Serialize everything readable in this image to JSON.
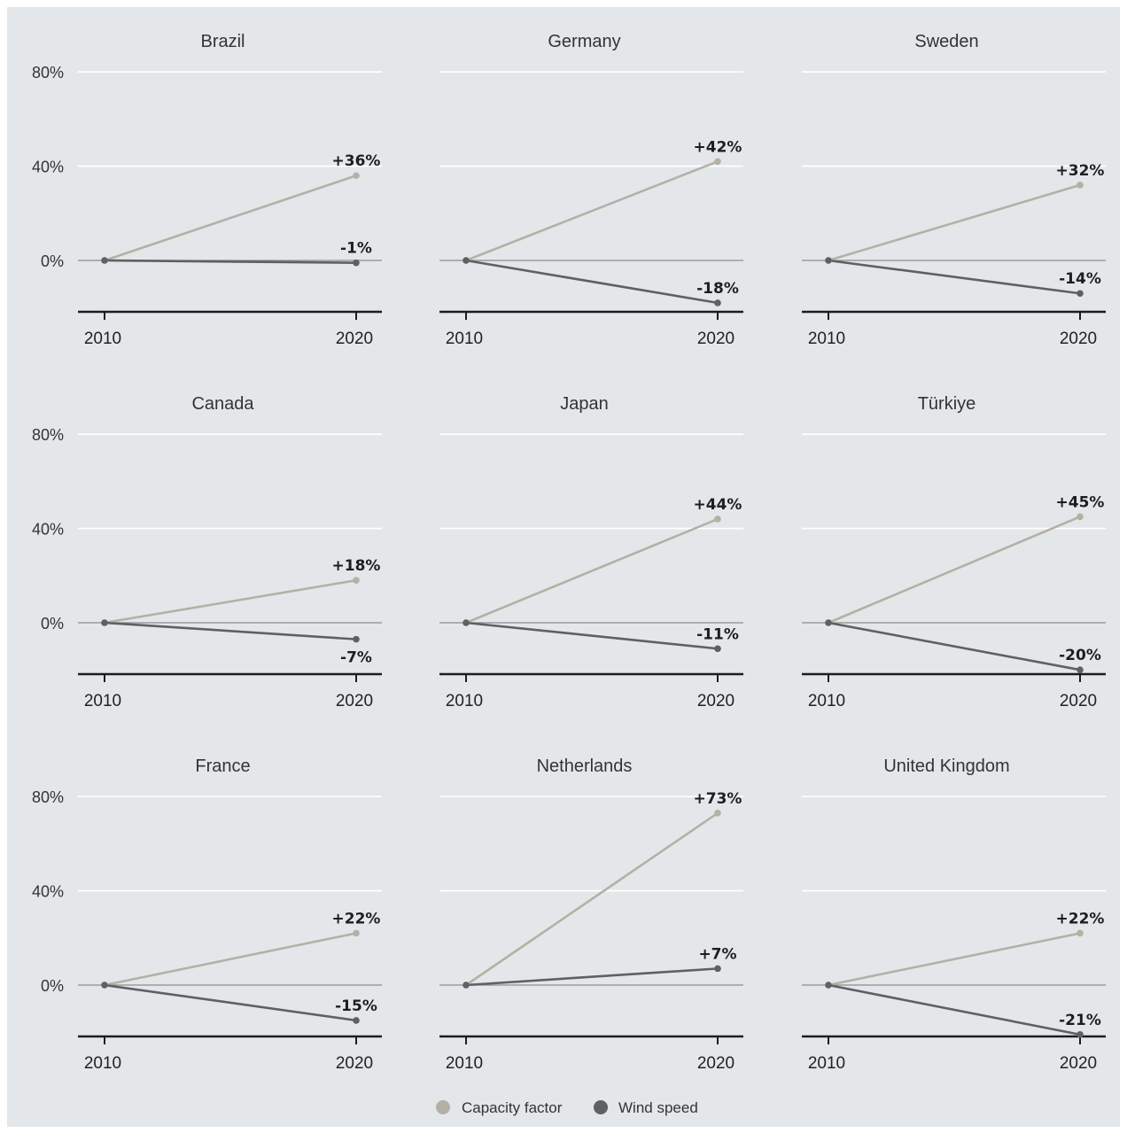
{
  "chart_data": {
    "type": "line",
    "x": [
      "2010",
      "2020"
    ],
    "y_ticks": [
      "80%",
      "40%",
      "0%"
    ],
    "ylim": [
      -22,
      80
    ],
    "grid": true,
    "legend_position": "bottom-center",
    "colors": {
      "capacity_factor": "#b3b1a5",
      "wind_speed": "#5e6064",
      "background": "#e3e7ea"
    },
    "legend": [
      {
        "key": "capacity_factor",
        "label": "Capacity factor"
      },
      {
        "key": "wind_speed",
        "label": "Wind speed"
      }
    ],
    "panels": [
      {
        "title": "Brazil",
        "capacity_factor": [
          0,
          36
        ],
        "wind_speed": [
          0,
          -1
        ],
        "capacity_label": "+36%",
        "wind_label": "-1%",
        "wind_label_pos": "above"
      },
      {
        "title": "Germany",
        "capacity_factor": [
          0,
          42
        ],
        "wind_speed": [
          0,
          -18
        ],
        "capacity_label": "+42%",
        "wind_label": "-18%",
        "wind_label_pos": "above"
      },
      {
        "title": "Sweden",
        "capacity_factor": [
          0,
          32
        ],
        "wind_speed": [
          0,
          -14
        ],
        "capacity_label": "+32%",
        "wind_label": "-14%",
        "wind_label_pos": "above"
      },
      {
        "title": "Canada",
        "capacity_factor": [
          0,
          18
        ],
        "wind_speed": [
          0,
          -7
        ],
        "capacity_label": "+18%",
        "wind_label": "-7%",
        "wind_label_pos": "below"
      },
      {
        "title": "Japan",
        "capacity_factor": [
          0,
          44
        ],
        "wind_speed": [
          0,
          -11
        ],
        "capacity_label": "+44%",
        "wind_label": "-11%",
        "wind_label_pos": "above"
      },
      {
        "title": "Türkiye",
        "capacity_factor": [
          0,
          45
        ],
        "wind_speed": [
          0,
          -20
        ],
        "capacity_label": "+45%",
        "wind_label": "-20%",
        "wind_label_pos": "above"
      },
      {
        "title": "France",
        "capacity_factor": [
          0,
          22
        ],
        "wind_speed": [
          0,
          -15
        ],
        "capacity_label": "+22%",
        "wind_label": "-15%",
        "wind_label_pos": "above"
      },
      {
        "title": "Netherlands",
        "capacity_factor": [
          0,
          73
        ],
        "wind_speed": [
          0,
          7
        ],
        "capacity_label": "+73%",
        "wind_label": "+7%",
        "wind_label_pos": "above"
      },
      {
        "title": "United Kingdom",
        "capacity_factor": [
          0,
          22
        ],
        "wind_speed": [
          0,
          -21
        ],
        "capacity_label": "+22%",
        "wind_label": "-21%",
        "wind_label_pos": "above"
      }
    ]
  }
}
